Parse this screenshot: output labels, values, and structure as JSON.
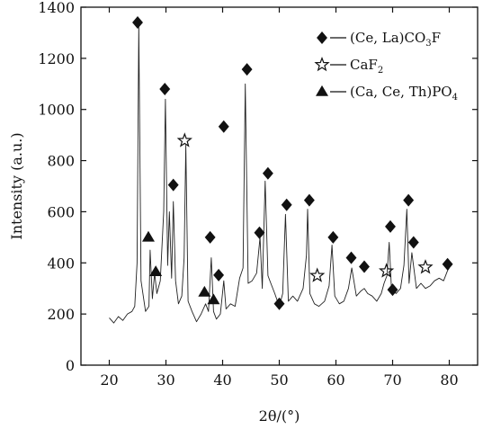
{
  "chart_data": {
    "type": "line",
    "xlabel": "2θ/(°)",
    "ylabel": "Intensity (a.u.)",
    "xlim": [
      15,
      85
    ],
    "ylim": [
      0,
      1400
    ],
    "x_ticks": [
      20,
      30,
      40,
      50,
      60,
      70,
      80
    ],
    "y_ticks": [
      0,
      200,
      400,
      600,
      800,
      1000,
      1200,
      1400
    ],
    "grid": false,
    "legend_position": "top-right",
    "series": [
      {
        "type": "line",
        "color": "#222222",
        "x": [
          20.0,
          20.8,
          21.6,
          22.4,
          23.2,
          24.0,
          24.5,
          24.9,
          25.2,
          25.6,
          26.4,
          27.0,
          27.2,
          27.6,
          28.0,
          28.4,
          29.0,
          29.6,
          29.9,
          30.3,
          30.6,
          31.0,
          31.3,
          31.7,
          32.2,
          32.8,
          33.2,
          33.5,
          33.9,
          34.6,
          35.4,
          36.2,
          37.0,
          37.5,
          38.0,
          38.4,
          38.9,
          39.6,
          40.2,
          40.6,
          41.4,
          42.2,
          43.0,
          43.6,
          44.0,
          44.5,
          45.2,
          46.0,
          46.6,
          47.0,
          47.5,
          48.0,
          48.5,
          49.2,
          50.0,
          50.6,
          51.1,
          51.6,
          52.4,
          53.2,
          54.2,
          54.8,
          55.0,
          55.4,
          56.2,
          57.0,
          58.0,
          58.8,
          59.3,
          59.8,
          60.6,
          61.4,
          62.2,
          62.8,
          63.6,
          64.4,
          65.0,
          65.6,
          66.4,
          67.2,
          68.0,
          68.5,
          69.0,
          69.4,
          69.8,
          70.6,
          71.4,
          72.0,
          72.5,
          72.9,
          73.4,
          74.2,
          75.0,
          75.8,
          76.6,
          77.4,
          78.2,
          79.0,
          79.7,
          80.0
        ],
        "y": [
          185,
          165,
          190,
          175,
          200,
          210,
          230,
          400,
          1330,
          330,
          210,
          230,
          450,
          260,
          360,
          280,
          330,
          600,
          1040,
          390,
          600,
          340,
          640,
          330,
          240,
          270,
          420,
          860,
          250,
          210,
          170,
          200,
          240,
          210,
          420,
          210,
          180,
          200,
          330,
          220,
          240,
          230,
          340,
          380,
          1100,
          320,
          330,
          360,
          500,
          300,
          720,
          350,
          320,
          280,
          230,
          280,
          590,
          250,
          270,
          250,
          300,
          430,
          610,
          280,
          240,
          230,
          250,
          310,
          470,
          270,
          240,
          250,
          300,
          380,
          270,
          290,
          300,
          280,
          270,
          250,
          280,
          320,
          350,
          480,
          300,
          280,
          300,
          390,
          610,
          320,
          440,
          300,
          320,
          300,
          310,
          330,
          340,
          330,
          370,
          380
        ]
      }
    ],
    "markers": [
      {
        "phase": "bastnaesite",
        "symbol": "diamond",
        "points": [
          [
            25,
            1340
          ],
          [
            29.8,
            1080
          ],
          [
            31.3,
            705
          ],
          [
            37.8,
            500
          ],
          [
            39.3,
            352
          ],
          [
            40.2,
            933
          ],
          [
            44.3,
            1157
          ],
          [
            46.5,
            518
          ],
          [
            48.0,
            750
          ],
          [
            50.0,
            240
          ],
          [
            51.3,
            627
          ],
          [
            55.3,
            645
          ],
          [
            59.5,
            500
          ],
          [
            62.7,
            420
          ],
          [
            65.0,
            385
          ],
          [
            69.6,
            542
          ],
          [
            70.0,
            295
          ],
          [
            72.8,
            645
          ],
          [
            73.7,
            480
          ],
          [
            79.7,
            395
          ]
        ]
      },
      {
        "phase": "fluorite",
        "symbol": "star",
        "points": [
          [
            33.3,
            878
          ],
          [
            56.7,
            350
          ],
          [
            68.9,
            368
          ],
          [
            75.8,
            383
          ]
        ]
      },
      {
        "phase": "monazite",
        "symbol": "triangle",
        "points": [
          [
            26.9,
            500
          ],
          [
            28.2,
            365
          ],
          [
            36.8,
            285
          ],
          [
            38.4,
            255
          ]
        ]
      }
    ],
    "legend": [
      {
        "phase": "bastnaesite",
        "symbol": "diamond",
        "label_parts": [
          {
            "t": "(Ce, La)CO"
          },
          {
            "t": "3",
            "sub": true
          },
          {
            "t": "F"
          }
        ]
      },
      {
        "phase": "fluorite",
        "symbol": "star",
        "label_parts": [
          {
            "t": "CaF"
          },
          {
            "t": "2",
            "sub": true
          }
        ]
      },
      {
        "phase": "monazite",
        "symbol": "triangle",
        "label_parts": [
          {
            "t": "(Ca, Ce, Th)PO"
          },
          {
            "t": "4",
            "sub": true
          }
        ]
      }
    ]
  }
}
